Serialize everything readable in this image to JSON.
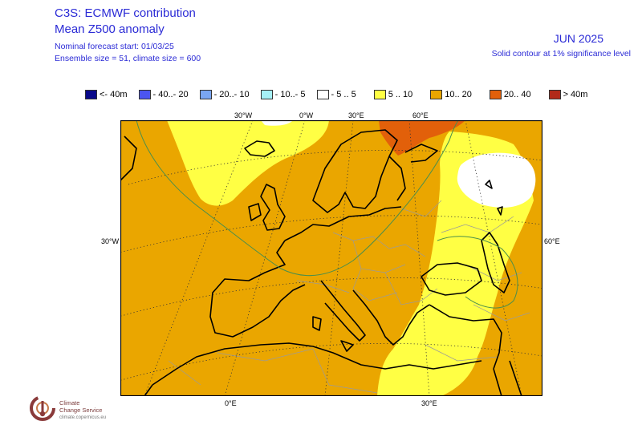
{
  "header": {
    "title_line1": "C3S: ECMWF contribution",
    "title_line2": "Mean Z500 anomaly",
    "forecast_start": "Nominal forecast start: 01/03/25",
    "ensemble_info": "Ensemble size = 51, climate size = 600",
    "month": "JUN 2025",
    "contour_note": "Solid contour at 1% significance level"
  },
  "legend": [
    {
      "label": "<- 40m",
      "color": "#0a0a8a"
    },
    {
      "label": "- 40..- 20",
      "color": "#4b55f0"
    },
    {
      "label": "- 20..- 10",
      "color": "#7aa6f2"
    },
    {
      "label": "- 10..- 5",
      "color": "#a6f0f6"
    },
    {
      "label": "- 5 .. 5",
      "color": "#ffffff"
    },
    {
      "label": "5 .. 10",
      "color": "#ffff44"
    },
    {
      "label": "10.. 20",
      "color": "#eaa600"
    },
    {
      "label": "20.. 40",
      "color": "#e2600a"
    },
    {
      "label": "> 40m",
      "color": "#b22a1a"
    }
  ],
  "map_labels": {
    "top_30w": "30°W",
    "top_0w": "0°W",
    "top_30e": "30°E",
    "top_60e": "60°E",
    "left_30w": "30°W",
    "right_60e": "60°E",
    "bottom_0e": "0°E",
    "bottom_30e": "30°E"
  },
  "logo": {
    "line1": "Climate",
    "line2": "Change Service",
    "url": "climate.copernicus.eu"
  }
}
